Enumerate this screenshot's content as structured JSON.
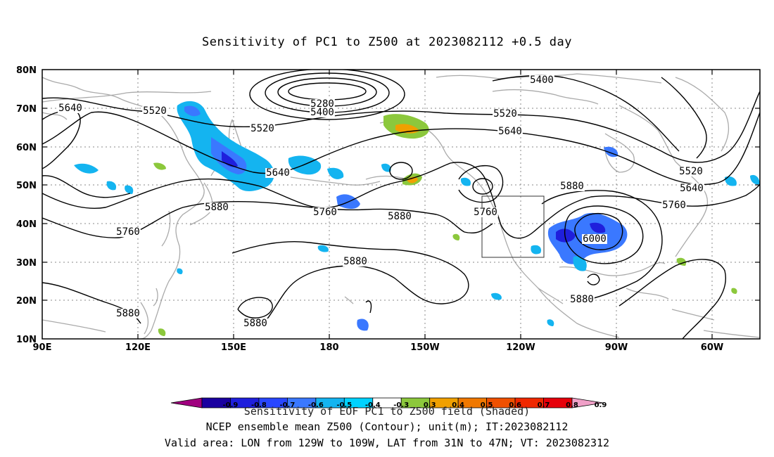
{
  "title": "Sensitivity of PC1 to Z500 at 2023082112 +0.5 day",
  "lat_labels": [
    "80N",
    "70N",
    "60N",
    "50N",
    "40N",
    "30N",
    "20N",
    "10N"
  ],
  "lon_labels": [
    "90E",
    "120E",
    "150E",
    "180",
    "150W",
    "120W",
    "90W",
    "60W"
  ],
  "contour_labels": {
    "c5280": "5280",
    "c5400_a": "5400",
    "c5400_b": "5400",
    "c5520_a": "5520",
    "c5520_b": "5520",
    "c5520_c": "5520",
    "c5520_d": "5520",
    "c5640_a": "5640",
    "c5640_b": "5640",
    "c5640_c": "5640",
    "c5640_d": "5640",
    "c5760_a": "5760",
    "c5760_b": "5760",
    "c5760_c": "5760",
    "c5760_d": "5760",
    "c5880_a": "5880",
    "c5880_b": "5880",
    "c5880_c": "5880",
    "c5880_d": "5880",
    "c5880_e": "5880",
    "c5880_f": "5880",
    "c5880_g": "5880",
    "c6000": "6000"
  },
  "colorbar": {
    "colors": [
      "#a0007f",
      "#1a00a0",
      "#1f1fdc",
      "#2846ff",
      "#3a78ff",
      "#14b4f0",
      "#00d2ff",
      "#ffffff",
      "#8cc83c",
      "#f0a000",
      "#f07800",
      "#f05000",
      "#f02800",
      "#e6000a",
      "#f0a0c8"
    ],
    "ticks": [
      "-0.9",
      "-0.8",
      "-0.7",
      "-0.6",
      "-0.5",
      "-0.4",
      "-0.3",
      "0.3",
      "0.4",
      "0.5",
      "0.6",
      "0.7",
      "0.8",
      "0.9"
    ]
  },
  "footer": {
    "line1": "Sensitivity of EOF PC1 to Z500 field (Shaded)",
    "line2": "NCEP ensemble mean Z500 (Contour); unit(m); IT:2023082112",
    "line3": "Valid area: LON from 129W to 109W, LAT from 31N to 47N; VT: 2023082312"
  },
  "valid_area": {
    "lon_min": "129W",
    "lon_max": "109W",
    "lat_min": "31N",
    "lat_max": "47N"
  }
}
